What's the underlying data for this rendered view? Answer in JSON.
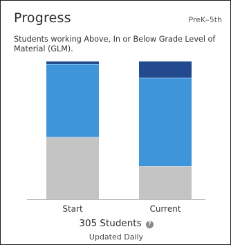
{
  "card": {
    "title": "Progress",
    "grade_range": "PreK–5th",
    "description": "Students working Above, In or Below Grade Level of Material (GLM).",
    "student_count": "305 Students",
    "updated": "Updated Daily"
  },
  "colors": {
    "above": "#234a8f",
    "in": "#3f95d9",
    "below": "#c4c4c4"
  },
  "chart_data": {
    "type": "bar",
    "stacked": true,
    "percent": true,
    "categories": [
      "Start",
      "Current"
    ],
    "series": [
      {
        "key": "below",
        "values": [
          45,
          24
        ]
      },
      {
        "key": "in",
        "values": [
          53,
          64
        ]
      },
      {
        "key": "above",
        "values": [
          2,
          12
        ]
      }
    ],
    "ylim": [
      0,
      100
    ],
    "legend": "none",
    "grid": false
  }
}
